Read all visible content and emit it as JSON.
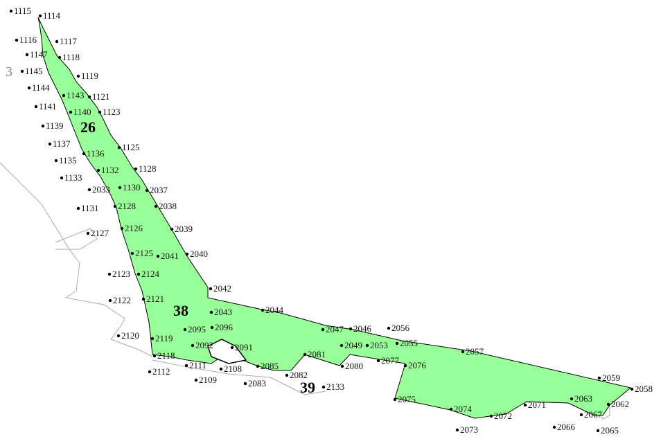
{
  "map": {
    "fill_color": "#99ff99",
    "outline_color": "#000000",
    "road_color": "#aaaaaa",
    "area_labels": {
      "parcel_26": "26",
      "parcel_38": "38",
      "parcel_39": "39",
      "side_label_3": "3"
    },
    "point_labels": {
      "p1115": "1115",
      "p1114": "1114",
      "p1116": "1116",
      "p1117": "1117",
      "p1147": "1147",
      "p1118": "1118",
      "p1145": "1145",
      "p1119": "1119",
      "p1144": "1144",
      "p1143": "1143",
      "p1121": "1121",
      "p1141": "1141",
      "p1140": "1140",
      "p1123": "1123",
      "p1139": "1139",
      "p1137": "1137",
      "p1125": "1125",
      "p1136": "1136",
      "p1135": "1135",
      "p1132": "1132",
      "p1128": "1128",
      "p1133": "1133",
      "p2033": "2033",
      "p1130": "1130",
      "p2037": "2037",
      "p1131": "1131",
      "p2128": "2128",
      "p2038": "2038",
      "p2127": "2127",
      "p2126": "2126",
      "p2039": "2039",
      "p2125": "2125",
      "p2041": "2041",
      "p2040": "2040",
      "p2123": "2123",
      "p2124": "2124",
      "p2042": "2042",
      "p2122": "2122",
      "p2121": "2121",
      "p2043": "2043",
      "p2044": "2044",
      "p2095": "2095",
      "p2096": "2096",
      "p2047": "2047",
      "p2046": "2046",
      "p2056": "2056",
      "p2120": "2120",
      "p2119": "2119",
      "p2092": "2092",
      "p2091": "2091",
      "p2049": "2049",
      "p2053": "2053",
      "p2055": "2055",
      "p2057": "2057",
      "p2118": "2118",
      "p2081": "2081",
      "p2077": "2077",
      "p2112": "2112",
      "p2111": "2111",
      "p2108": "2108",
      "p2085": "2085",
      "p2080": "2080",
      "p2076": "2076",
      "p2109": "2109",
      "p2083": "2083",
      "p2082": "2082",
      "p2133": "2133",
      "p2059": "2059",
      "p2058": "2058",
      "p2075": "2075",
      "p2074": "2074",
      "p2071": "2071",
      "p2063": "2063",
      "p2062": "2062",
      "p2072": "2072",
      "p2067": "2067",
      "p2073": "2073",
      "p2066": "2066",
      "p2065": "2065"
    }
  }
}
